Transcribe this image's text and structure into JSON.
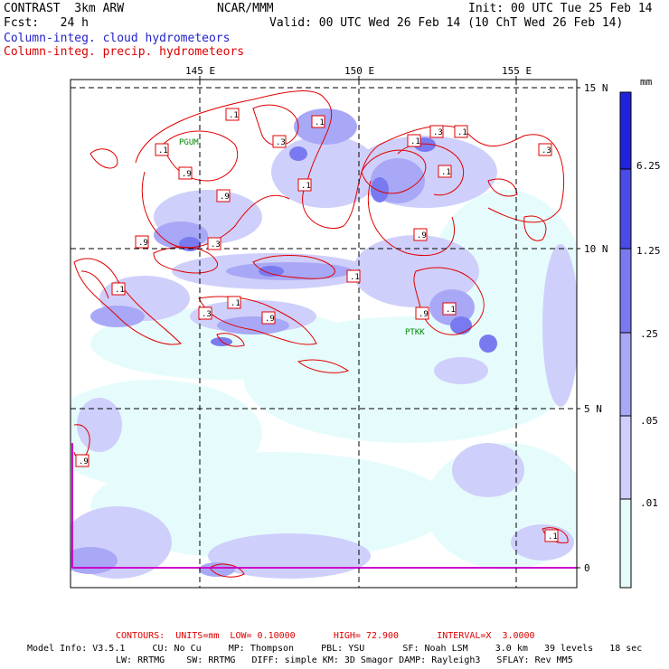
{
  "header": {
    "model": "CONTRAST  3km ARW",
    "center": "NCAR/MMM",
    "init": "Init: 00 UTC Tue 25 Feb 14",
    "fcst": "Fcst:   24 h",
    "valid": "Valid: 00 UTC Wed 26 Feb 14 (10 ChT Wed 26 Feb 14)",
    "field1": "Column-integ. cloud hydrometeors",
    "field2": "Column-integ. precip. hydrometeors"
  },
  "map": {
    "lon_labels": [
      "145 E",
      "150 E",
      "155 E"
    ],
    "lat_labels": [
      "15 N",
      "10 N",
      "5 N",
      "0"
    ],
    "stations": [
      "PGUM",
      "PTKK"
    ],
    "contour_labels": [
      ".1",
      ".3",
      ".1",
      ".1",
      ".3",
      ".1",
      ".1",
      ".9",
      ".9",
      ".1",
      ".9",
      ".3",
      ".9",
      ".1",
      ".1",
      ".3",
      ".9",
      ".1",
      ".9",
      ".1",
      ".9",
      ".1",
      ".3",
      ".1"
    ]
  },
  "colorbar": {
    "unit": "mm",
    "labels": [
      "6.25",
      "1.25",
      ".25",
      ".05",
      ".01"
    ],
    "colors": [
      "#2222dd",
      "#4a4ae6",
      "#7a7af0",
      "#a8a8f6",
      "#cfcffb",
      "#e6fcfc",
      "#ffffff"
    ]
  },
  "colors": {
    "cloud": "#6f6ff0",
    "precip": "#e00000",
    "border": "#cc00cc"
  },
  "footer": {
    "contours": "CONTOURS:  UNITS=mm  LOW= 0.10000       HIGH= 72.900       INTERVAL=X  3.0000",
    "line1": "Model Info: V3.5.1     CU: No Cu     MP: Thompson     PBL: YSU       SF: Noah LSM     3.0 km   39 levels   18 sec",
    "line2": "LW: RRTMG    SW: RRTMG   DIFF: simple KM: 3D Smagor DAMP: Rayleigh3   SFLAY: Rev MM5"
  }
}
